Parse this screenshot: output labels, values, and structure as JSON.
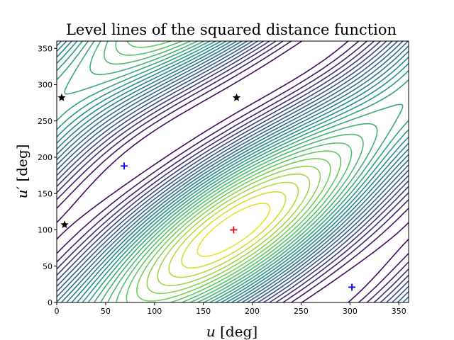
{
  "chart_data": {
    "type": "contour",
    "title": "Level lines of the squared distance function",
    "xlabel_var": "u",
    "xlabel_unit": "[deg]",
    "ylabel_var": "u′",
    "ylabel_unit": "[deg]",
    "xlim": [
      0,
      360
    ],
    "ylim": [
      0,
      360
    ],
    "xticks": [
      0,
      50,
      100,
      150,
      200,
      250,
      300,
      350
    ],
    "yticks": [
      0,
      50,
      100,
      150,
      200,
      250,
      300,
      350
    ],
    "colormap": [
      "#440154",
      "#3b528b",
      "#21918c",
      "#5ec962",
      "#fde725"
    ],
    "levels": 28,
    "function_center": [
      181,
      100
    ],
    "markers": [
      {
        "name": "maximum",
        "symbol": "+",
        "color": "#e8000b",
        "x": 181,
        "y": 100
      },
      {
        "name": "minimum",
        "symbol": "+",
        "color": "#0000ff",
        "x": 69,
        "y": 188
      },
      {
        "name": "minimum",
        "symbol": "+",
        "color": "#0000ff",
        "x": 302,
        "y": 21
      },
      {
        "name": "saddle",
        "symbol": "★",
        "color": "#000000",
        "x": 5,
        "y": 282
      },
      {
        "name": "saddle",
        "symbol": "★",
        "color": "#000000",
        "x": 184,
        "y": 282
      },
      {
        "name": "saddle",
        "symbol": "★",
        "color": "#000000",
        "x": 8,
        "y": 107
      }
    ]
  }
}
